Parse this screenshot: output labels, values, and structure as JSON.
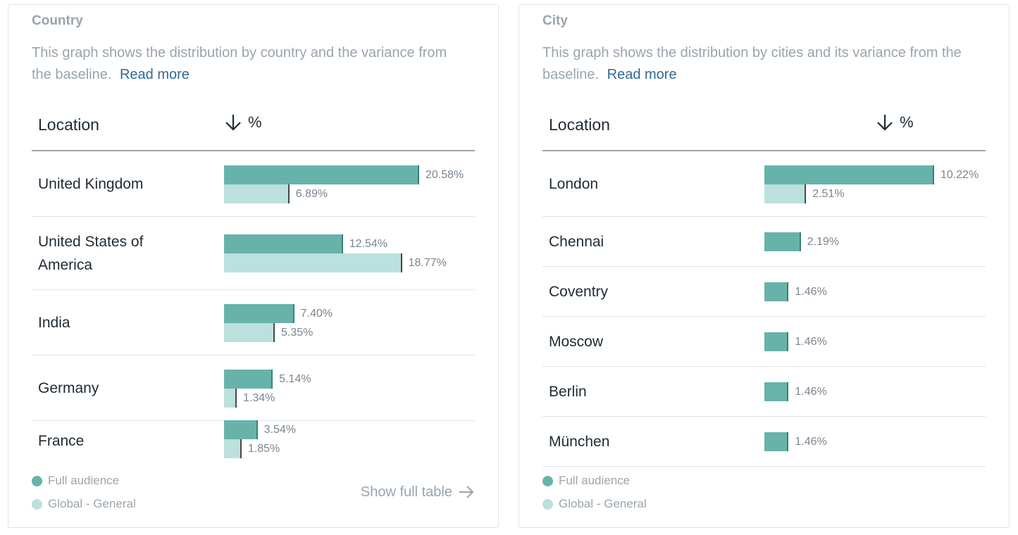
{
  "legend": {
    "full": "Full audience",
    "global": "Global - General"
  },
  "country": {
    "title": "Country",
    "desc": "This graph shows the distribution by country and the variance from the baseline.",
    "read_more": "Read more",
    "col_location": "Location",
    "col_pct": "%",
    "show_full": "Show full table",
    "rows": [
      {
        "label": "United Kingdom",
        "full": 20.58,
        "full_label": "20.58%",
        "global": 6.89,
        "global_label": "6.89%"
      },
      {
        "label": "United States of America",
        "full": 12.54,
        "full_label": "12.54%",
        "global": 18.77,
        "global_label": "18.77%"
      },
      {
        "label": "India",
        "full": 7.4,
        "full_label": "7.40%",
        "global": 5.35,
        "global_label": "5.35%"
      },
      {
        "label": "Germany",
        "full": 5.14,
        "full_label": "5.14%",
        "global": 1.34,
        "global_label": "1.34%"
      },
      {
        "label": "France",
        "full": 3.54,
        "full_label": "3.54%",
        "global": 1.85,
        "global_label": "1.85%"
      }
    ]
  },
  "city": {
    "title": "City",
    "desc": "This graph shows the distribution by cities and its variance from the baseline.",
    "read_more": "Read more",
    "col_location": "Location",
    "col_pct": "%",
    "rows": [
      {
        "label": "London",
        "full": 10.22,
        "full_label": "10.22%",
        "global": 2.51,
        "global_label": "2.51%"
      },
      {
        "label": "Chennai",
        "full": 2.19,
        "full_label": "2.19%"
      },
      {
        "label": "Coventry",
        "full": 1.46,
        "full_label": "1.46%"
      },
      {
        "label": "Moscow",
        "full": 1.46,
        "full_label": "1.46%"
      },
      {
        "label": "Berlin",
        "full": 1.46,
        "full_label": "1.46%"
      },
      {
        "label": "München",
        "full": 1.46,
        "full_label": "1.46%"
      }
    ]
  },
  "colors": {
    "full": "#67b3aa",
    "global": "#bbe0dd",
    "link": "#2f6a97"
  }
}
